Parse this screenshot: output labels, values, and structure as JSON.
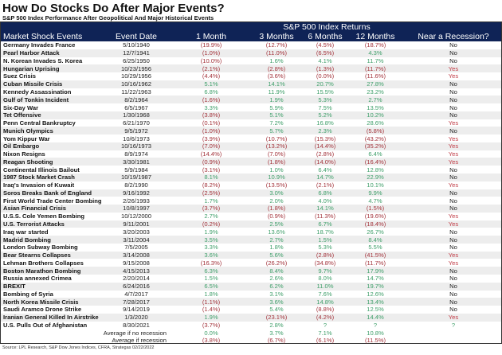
{
  "title": "How Do Stocks Do After Major Events?",
  "subtitle": "S&P 500 Index Performance After Geopolitical And Major Historical Events",
  "source": "Source: LPL Research, S&P Dow Jones Indices, CFRA, Strategas 02/22/2022",
  "chart_data": {
    "type": "table",
    "group_header": "S&P 500 Index Returns",
    "columns": [
      "Market Shock Events",
      "Event Date",
      "1 Month",
      "3 Months",
      "6 Months",
      "12 Months",
      "Near a Recession?"
    ],
    "rows": [
      [
        "Germany Invades France",
        "5/10/1940",
        "(19.9%)",
        "(12.7%)",
        "(4.5%)",
        "(18.7%)",
        "No"
      ],
      [
        "Pearl Harbor Attack",
        "12/7/1941",
        "(1.0%)",
        "(11.0%)",
        "(6.5%)",
        "4.3%",
        "No"
      ],
      [
        "N. Korean Invades S. Korea",
        "6/25/1950",
        "(10.0%)",
        "1.6%",
        "4.1%",
        "11.7%",
        "No"
      ],
      [
        "Hungarian Uprising",
        "10/23/1956",
        "(2.1%)",
        "(2.8%)",
        "(1.3%)",
        "(11.7%)",
        "Yes"
      ],
      [
        "Suez Crisis",
        "10/29/1956",
        "(4.4%)",
        "(3.6%)",
        "(0.0%)",
        "(11.6%)",
        "Yes"
      ],
      [
        "Cuban Missile Crisis",
        "10/16/1962",
        "5.1%",
        "14.1%",
        "20.7%",
        "27.8%",
        "No"
      ],
      [
        "Kennedy Assassination",
        "11/22/1963",
        "6.8%",
        "11.9%",
        "15.5%",
        "23.2%",
        "No"
      ],
      [
        "Gulf of Tonkin Incident",
        "8/2/1964",
        "(1.6%)",
        "1.9%",
        "5.3%",
        "2.7%",
        "No"
      ],
      [
        "Six-Day War",
        "6/5/1967",
        "3.3%",
        "5.9%",
        "7.5%",
        "13.5%",
        "No"
      ],
      [
        "Tet Offensive",
        "1/30/1968",
        "(3.8%)",
        "5.1%",
        "5.2%",
        "10.2%",
        "No"
      ],
      [
        "Penn Central Bankruptcy",
        "6/21/1970",
        "(0.1%)",
        "7.2%",
        "16.8%",
        "28.6%",
        "Yes"
      ],
      [
        "Munich Olympics",
        "9/5/1972",
        "(1.0%)",
        "5.7%",
        "2.3%",
        "(5.8%)",
        "No"
      ],
      [
        "Yom Kippur War",
        "10/6/1973",
        "(3.9%)",
        "(10.7%)",
        "(15.3%)",
        "(43.2%)",
        "Yes"
      ],
      [
        "Oil Embargo",
        "10/16/1973",
        "(7.0%)",
        "(13.2%)",
        "(14.4%)",
        "(35.2%)",
        "Yes"
      ],
      [
        "Nixon Resigns",
        "8/9/1974",
        "(14.4%)",
        "(7.0%)",
        "(2.8%)",
        "6.4%",
        "Yes"
      ],
      [
        "Reagan Shooting",
        "3/30/1981",
        "(0.9%)",
        "(1.8%)",
        "(14.0%)",
        "(16.4%)",
        "Yes"
      ],
      [
        "Continental Illinois Bailout",
        "5/9/1984",
        "(3.1%)",
        "1.0%",
        "6.4%",
        "12.8%",
        "No"
      ],
      [
        "1987 Stock Market Crash",
        "10/19/1987",
        "8.1%",
        "10.9%",
        "14.7%",
        "22.9%",
        "No"
      ],
      [
        "Iraq's Invasion of Kuwait",
        "8/2/1990",
        "(8.2%)",
        "(13.5%)",
        "(2.1%)",
        "10.1%",
        "Yes"
      ],
      [
        "Soros Breaks Bank of England",
        "9/16/1992",
        "(2.5%)",
        "3.0%",
        "6.8%",
        "9.9%",
        "No"
      ],
      [
        "First World Trade Center Bombing",
        "2/26/1993",
        "1.7%",
        "2.0%",
        "4.0%",
        "4.7%",
        "No"
      ],
      [
        "Asian Financial Crisis",
        "10/8/1997",
        "(3.7%)",
        "(1.8%)",
        "14.1%",
        "(1.5%)",
        "No"
      ],
      [
        "U.S.S. Cole Yemen Bombing",
        "10/12/2000",
        "2.7%",
        "(0.9%)",
        "(11.3%)",
        "(19.6%)",
        "Yes"
      ],
      [
        "U.S. Terrorist Attacks",
        "9/11/2001",
        "(0.2%)",
        "2.5%",
        "6.7%",
        "(18.4%)",
        "Yes"
      ],
      [
        "Iraq war started",
        "3/20/2003",
        "1.9%",
        "13.6%",
        "18.7%",
        "26.7%",
        "No"
      ],
      [
        "Madrid Bombing",
        "3/11/2004",
        "3.5%",
        "2.7%",
        "1.5%",
        "8.4%",
        "No"
      ],
      [
        "London Subway Bombing",
        "7/5/2005",
        "3.3%",
        "1.8%",
        "5.3%",
        "5.5%",
        "No"
      ],
      [
        "Bear Stearns Collapses",
        "3/14/2008",
        "3.6%",
        "5.6%",
        "(2.8%)",
        "(41.5%)",
        "Yes"
      ],
      [
        "Lehman Brothers Collapses",
        "9/15/2008",
        "(16.3%)",
        "(26.2%)",
        "(34.8%)",
        "(11.7%)",
        "Yes"
      ],
      [
        "Boston Marathon Bombing",
        "4/15/2013",
        "6.3%",
        "8.4%",
        "9.7%",
        "17.9%",
        "No"
      ],
      [
        "Russia annexed Crimea",
        "2/20/2014",
        "1.5%",
        "2.6%",
        "8.0%",
        "14.7%",
        "No"
      ],
      [
        "BREXIT",
        "6/24/2016",
        "6.5%",
        "6.2%",
        "11.0%",
        "19.7%",
        "No"
      ],
      [
        "Bombing of Syria",
        "4/7/2017",
        "1.8%",
        "3.1%",
        "7.6%",
        "12.6%",
        "No"
      ],
      [
        "North Korea Missile Crisis",
        "7/28/2017",
        "(1.1%)",
        "3.6%",
        "14.8%",
        "13.4%",
        "No"
      ],
      [
        "Saudi Aramco Drone Strike",
        "9/14/2019",
        "(1.4%)",
        "5.4%",
        "(8.8%)",
        "12.5%",
        "No"
      ],
      [
        "Iranian General Killed In Airstrike",
        "1/3/2020",
        "1.9%",
        "(23.1%)",
        "(4.2%)",
        "14.4%",
        "Yes"
      ],
      [
        "U.S. Pulls Out of Afghanistan",
        "8/30/2021",
        "(3.7%)",
        "2.8%",
        "?",
        "?",
        "?"
      ]
    ],
    "averages": [
      [
        "Average if no recession",
        "0.0%",
        "3.7%",
        "7.1%",
        "10.8%"
      ],
      [
        "Average if recession",
        "(3.8%)",
        "(6.7%)",
        "(6.1%)",
        "(11.5%)"
      ]
    ]
  }
}
